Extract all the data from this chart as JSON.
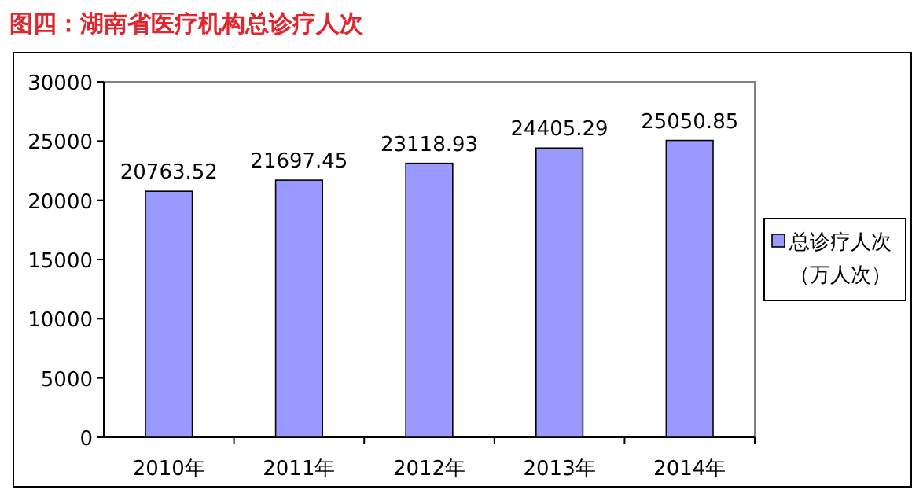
{
  "chart_data": {
    "type": "bar",
    "title": "图四：湖南省医疗机构总诊疗人次",
    "categories": [
      "2010年",
      "2011年",
      "2012年",
      "2013年",
      "2014年"
    ],
    "series": [
      {
        "name": "总诊疗人次（万人次）",
        "color": "#9999ff",
        "values": [
          20763.52,
          21697.45,
          23118.93,
          24405.29,
          25050.85
        ]
      }
    ],
    "ylim": [
      0,
      30000
    ],
    "yticks": [
      0,
      5000,
      10000,
      15000,
      20000,
      25000,
      30000
    ],
    "data_labels": true,
    "legend": "right",
    "grid": false
  }
}
